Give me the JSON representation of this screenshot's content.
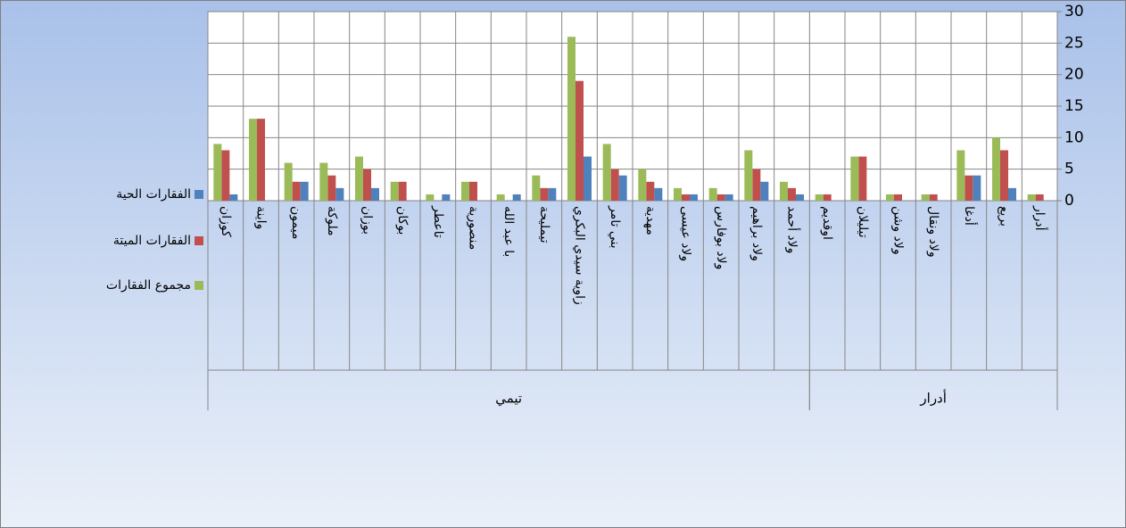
{
  "chart_data": {
    "type": "bar",
    "categories": [
      "كوزان",
      "واينة",
      "ميمون",
      "ملوكة",
      "بوزان",
      "بوكان",
      "تاعطر",
      "منصورية",
      "با عبد الله",
      "تيمليحة",
      "زاوية سيدي البكري",
      "بني تامر",
      "مهدية",
      "ولاد عيسى",
      "ولاد بوفارس",
      "ولاد براهيم",
      "ولاد أحمد",
      "اوقديم",
      "تيليلان",
      "ولاد وشن",
      "ولاد ونقال",
      "أدغا",
      "بريع",
      "أدرار"
    ],
    "groups": [
      {
        "name": "تيمي",
        "span": 17
      },
      {
        "name": "أدرار",
        "span": 7
      }
    ],
    "series": [
      {
        "name": "الفقارات الحية",
        "color": "#4f81bd",
        "values": [
          1,
          0,
          3,
          2,
          2,
          0,
          1,
          0,
          1,
          2,
          7,
          4,
          2,
          1,
          1,
          3,
          1,
          0,
          0,
          0,
          0,
          4,
          2,
          0
        ]
      },
      {
        "name": "الفقارات الميتة",
        "color": "#c0504d",
        "values": [
          8,
          13,
          3,
          4,
          5,
          3,
          0,
          3,
          0,
          2,
          19,
          5,
          3,
          1,
          1,
          5,
          2,
          1,
          7,
          1,
          1,
          4,
          8,
          1
        ]
      },
      {
        "name": "مجموع الفقارات",
        "color": "#9bbb59",
        "values": [
          9,
          13,
          6,
          6,
          7,
          3,
          1,
          3,
          1,
          4,
          26,
          9,
          5,
          2,
          2,
          8,
          3,
          1,
          7,
          1,
          1,
          8,
          10,
          1
        ]
      }
    ],
    "ylim": [
      0,
      30
    ],
    "yticks": [
      0,
      5,
      10,
      15,
      20,
      25,
      30
    ],
    "grid": true,
    "legend": "left"
  }
}
